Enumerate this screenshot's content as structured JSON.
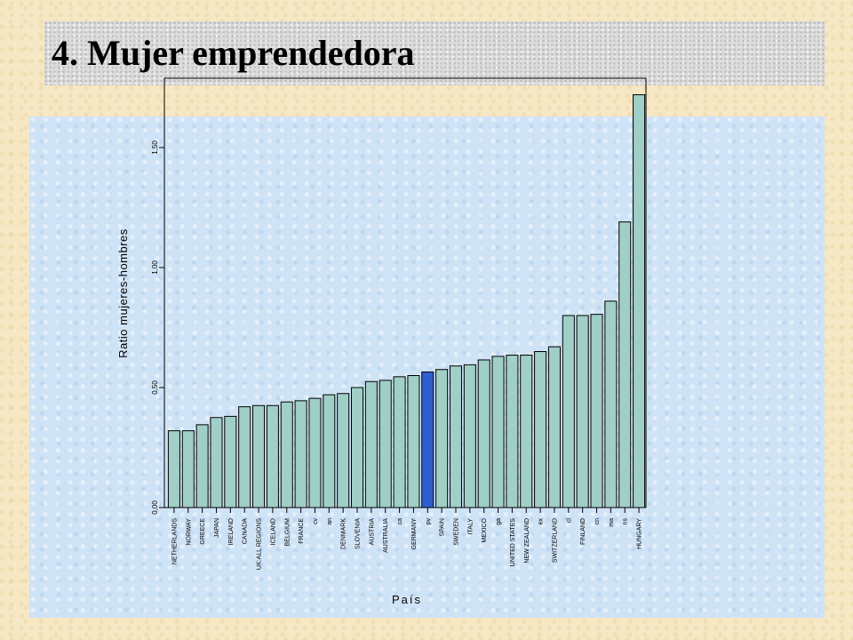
{
  "slide": {
    "title": "4. Mujer emprendedora"
  },
  "chart_data": {
    "type": "bar",
    "title": "",
    "xlabel": "País",
    "ylabel": "Ratio mujeres-hombres",
    "ylim": [
      0,
      1.75
    ],
    "yticks": [
      0.0,
      0.5,
      1.0,
      1.5
    ],
    "ytick_labels": [
      "0,00",
      "0,50",
      "1,00",
      "1,50"
    ],
    "grid": false,
    "categories": [
      "NETHERLANDS",
      "NORWAY",
      "GREECE",
      "JAPAN",
      "IRELAND",
      "CANADA",
      "UK:ALL REGIONS",
      "ICELAND",
      "BELGIUM",
      "FRANCE",
      "cv",
      "an",
      "DENMARK",
      "SLOVENIA",
      "AUSTRIA",
      "AUSTRALIA",
      "ca",
      "GERMANY",
      "pv",
      "SPAIN",
      "SWEDEN",
      "ITALY",
      "MEXICO",
      "ga",
      "UNITED STATES",
      "NEW ZEALAND",
      "ex",
      "SWITZERLAND",
      "cl",
      "FINLAND",
      "cn",
      "ma",
      "ns",
      "HUNGARY"
    ],
    "values": [
      0.32,
      0.32,
      0.345,
      0.375,
      0.38,
      0.42,
      0.425,
      0.425,
      0.44,
      0.445,
      0.455,
      0.47,
      0.475,
      0.5,
      0.525,
      0.53,
      0.545,
      0.55,
      0.565,
      0.575,
      0.59,
      0.595,
      0.615,
      0.63,
      0.635,
      0.635,
      0.65,
      0.67,
      0.8,
      0.8,
      0.805,
      0.86,
      1.19,
      1.72
    ],
    "highlight_category": "pv",
    "colors": {
      "bar": "#9fcfc6",
      "highlight": "#2f5ecf",
      "outline": "#000000"
    }
  }
}
